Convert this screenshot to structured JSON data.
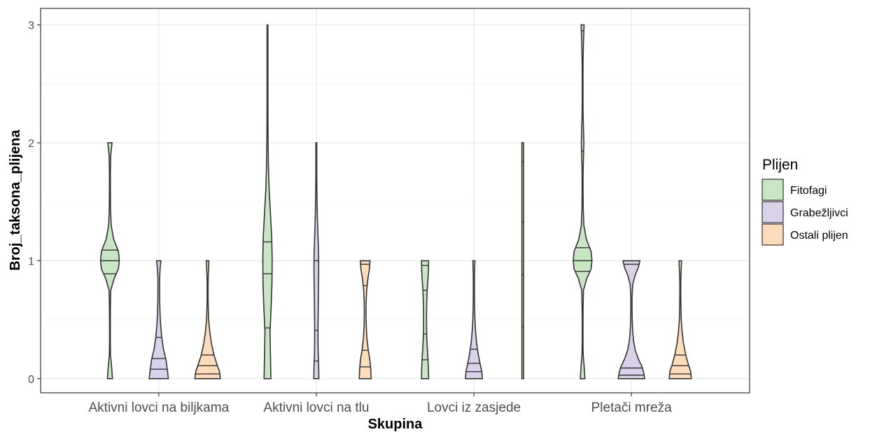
{
  "chart_data": {
    "type": "violin",
    "xlabel": "Skupina",
    "ylabel": "Broj_taksona_plijena",
    "ylim": [
      -0.12,
      3.14
    ],
    "yticks": [
      "0",
      "1",
      "2",
      "3"
    ],
    "grid": "on",
    "legend": {
      "title": "Plijen",
      "position": "right",
      "entries": [
        "Fitofagi",
        "Grabežljivci",
        "Ostali plijen"
      ]
    },
    "colors": {
      "Fitofagi": "#c8e6c4",
      "Grabežljivci": "#dad2ea",
      "Ostali plijen": "#fddcbc"
    },
    "categories": [
      "Aktivni lovci na biljkama",
      "Aktivni lovci na tlu",
      "Lovci iz zasjede",
      "Pletači mreža"
    ],
    "violins": [
      {
        "group": "Aktivni lovci na biljkama",
        "plijen": "Fitofagi",
        "y": [
          0,
          0.1,
          0.2,
          0.3,
          0.45,
          0.6,
          0.75,
          0.85,
          0.93,
          1.0,
          1.08,
          1.18,
          1.3,
          1.45,
          1.6,
          1.75,
          1.9,
          2.0
        ],
        "half_width": [
          0.12,
          0.08,
          0.028,
          0.018,
          0.018,
          0.022,
          0.04,
          0.2,
          0.4,
          0.44,
          0.4,
          0.18,
          0.06,
          0.028,
          0.022,
          0.022,
          0.04,
          0.1
        ],
        "quantiles": [
          0.89,
          1.0,
          1.09
        ]
      },
      {
        "group": "Aktivni lovci na biljkama",
        "plijen": "Grabežljivci",
        "y": [
          0,
          0.08,
          0.16,
          0.25,
          0.35,
          0.45,
          0.55,
          0.65,
          0.75,
          0.85,
          0.93,
          1.0
        ],
        "half_width": [
          0.45,
          0.4,
          0.34,
          0.22,
          0.14,
          0.09,
          0.06,
          0.045,
          0.04,
          0.04,
          0.06,
          0.1
        ],
        "quantiles": [
          0.08,
          0.17,
          0.35
        ]
      },
      {
        "group": "Aktivni lovci na biljkama",
        "plijen": "Ostali plijen",
        "y": [
          0,
          0.06,
          0.12,
          0.2,
          0.3,
          0.4,
          0.5,
          0.6,
          0.7,
          0.8,
          0.88,
          0.95,
          1.0
        ],
        "half_width": [
          0.6,
          0.56,
          0.44,
          0.3,
          0.18,
          0.1,
          0.05,
          0.03,
          0.022,
          0.022,
          0.03,
          0.05,
          0.06
        ],
        "quantiles": [
          0.04,
          0.11,
          0.2
        ]
      },
      {
        "group": "Aktivni lovci na tlu",
        "plijen": "Fitofagi",
        "y": [
          0,
          0.2,
          0.4,
          0.6,
          0.8,
          1.0,
          1.2,
          1.4,
          1.6,
          1.8,
          2.0,
          2.2,
          2.4,
          2.6,
          2.8,
          3.0
        ],
        "half_width": [
          0.16,
          0.14,
          0.12,
          0.17,
          0.21,
          0.22,
          0.2,
          0.14,
          0.08,
          0.045,
          0.03,
          0.022,
          0.02,
          0.02,
          0.02,
          0.02
        ],
        "quantiles": [
          0.43,
          0.89,
          1.16
        ]
      },
      {
        "group": "Aktivni lovci na tlu",
        "plijen": "Grabežljivci",
        "y": [
          0,
          0.1,
          0.2,
          0.3,
          0.45,
          0.6,
          0.75,
          0.9,
          1.0,
          1.1,
          1.25,
          1.4,
          1.55,
          1.7,
          1.85,
          2.0
        ],
        "half_width": [
          0.12,
          0.11,
          0.09,
          0.08,
          0.08,
          0.09,
          0.1,
          0.11,
          0.11,
          0.1,
          0.07,
          0.045,
          0.03,
          0.022,
          0.02,
          0.02
        ],
        "quantiles": [
          0.15,
          0.41,
          1.0
        ]
      },
      {
        "group": "Aktivni lovci na tlu",
        "plijen": "Ostali plijen",
        "y": [
          0,
          0.08,
          0.16,
          0.25,
          0.35,
          0.45,
          0.55,
          0.65,
          0.75,
          0.85,
          0.93,
          1.0
        ],
        "half_width": [
          0.28,
          0.26,
          0.22,
          0.14,
          0.08,
          0.05,
          0.04,
          0.045,
          0.07,
          0.13,
          0.2,
          0.23
        ],
        "quantiles": [
          0.1,
          0.24,
          0.79,
          0.97
        ]
      },
      {
        "group": "Lovci iz zasjede",
        "plijen": "Fitofagi",
        "y": [
          0,
          0.08,
          0.16,
          0.25,
          0.35,
          0.45,
          0.55,
          0.65,
          0.75,
          0.85,
          0.93,
          1.0
        ],
        "half_width": [
          0.17,
          0.16,
          0.14,
          0.11,
          0.08,
          0.07,
          0.07,
          0.08,
          0.1,
          0.14,
          0.16,
          0.17
        ],
        "quantiles": [
          0.16,
          0.38,
          0.75,
          0.96
        ]
      },
      {
        "group": "Lovci iz zasjede",
        "plijen": "Grabežljivci",
        "y": [
          0,
          0.06,
          0.12,
          0.2,
          0.3,
          0.4,
          0.5,
          0.6,
          0.7,
          0.8,
          0.88,
          0.95,
          1.0
        ],
        "half_width": [
          0.4,
          0.37,
          0.3,
          0.21,
          0.13,
          0.08,
          0.05,
          0.035,
          0.028,
          0.028,
          0.03,
          0.04,
          0.05
        ],
        "quantiles": [
          0.06,
          0.13,
          0.25
        ]
      },
      {
        "group": "Lovci iz zasjede",
        "plijen": "Ostali plijen",
        "y": [
          0,
          0.25,
          0.5,
          0.75,
          1.0,
          1.25,
          1.5,
          1.75,
          2.0
        ],
        "half_width": [
          0.04,
          0.04,
          0.04,
          0.04,
          0.04,
          0.04,
          0.04,
          0.04,
          0.04
        ],
        "quantiles": [
          0.44,
          0.88,
          1.33,
          1.84
        ]
      },
      {
        "group": "Pletači mreža",
        "plijen": "Fitofagi",
        "y": [
          0,
          0.1,
          0.2,
          0.3,
          0.45,
          0.6,
          0.75,
          0.85,
          0.93,
          1.0,
          1.08,
          1.18,
          1.3,
          1.45,
          1.6,
          1.75,
          1.9,
          2.0,
          2.1,
          2.25,
          2.4,
          2.55,
          2.7,
          2.85,
          2.95,
          3.0
        ],
        "half_width": [
          0.11,
          0.075,
          0.028,
          0.018,
          0.018,
          0.022,
          0.04,
          0.2,
          0.4,
          0.44,
          0.4,
          0.18,
          0.06,
          0.028,
          0.022,
          0.022,
          0.045,
          0.06,
          0.045,
          0.022,
          0.018,
          0.018,
          0.022,
          0.04,
          0.06,
          0.07
        ],
        "quantiles": [
          0.91,
          1.0,
          1.11,
          1.93,
          2.95
        ]
      },
      {
        "group": "Pletači mreža",
        "plijen": "Grabežljivci",
        "y": [
          0,
          0.05,
          0.1,
          0.16,
          0.24,
          0.32,
          0.4,
          0.5,
          0.6,
          0.7,
          0.8,
          0.88,
          0.94,
          1.0
        ],
        "half_width": [
          0.62,
          0.58,
          0.5,
          0.34,
          0.18,
          0.1,
          0.06,
          0.035,
          0.028,
          0.03,
          0.06,
          0.18,
          0.32,
          0.4
        ],
        "quantiles": [
          0.03,
          0.09,
          0.97
        ]
      },
      {
        "group": "Pletači mreža",
        "plijen": "Ostali plijen",
        "y": [
          0,
          0.06,
          0.12,
          0.2,
          0.3,
          0.4,
          0.5,
          0.6,
          0.7,
          0.8,
          0.88,
          0.95,
          1.0
        ],
        "half_width": [
          0.52,
          0.49,
          0.38,
          0.26,
          0.15,
          0.085,
          0.045,
          0.03,
          0.022,
          0.022,
          0.03,
          0.05,
          0.06
        ],
        "quantiles": [
          0.04,
          0.11,
          0.2
        ]
      }
    ]
  }
}
